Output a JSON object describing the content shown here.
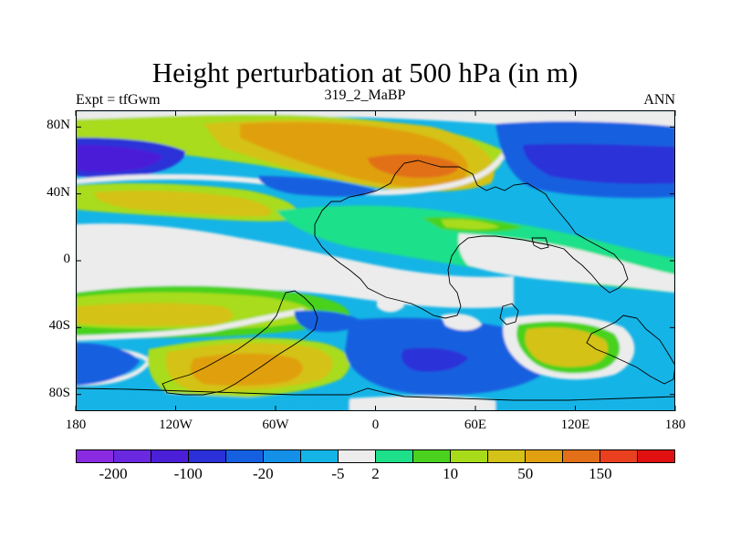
{
  "title": "Height perturbation at 500 hPa (in m)",
  "left_label": "Expt = tfGwm",
  "center_label": "319_2_MaBP",
  "right_label": "ANN",
  "map": {
    "y_ticks": [
      {
        "lat": 80,
        "label": "80N"
      },
      {
        "lat": 40,
        "label": "40N"
      },
      {
        "lat": 0,
        "label": "0"
      },
      {
        "lat": -40,
        "label": "40S"
      },
      {
        "lat": -80,
        "label": "80S"
      }
    ],
    "x_ticks": [
      {
        "lon": -180,
        "label": "180"
      },
      {
        "lon": -120,
        "label": "120W"
      },
      {
        "lon": -60,
        "label": "60W"
      },
      {
        "lon": 0,
        "label": "0"
      },
      {
        "lon": 60,
        "label": "60E"
      },
      {
        "lon": 120,
        "label": "120E"
      },
      {
        "lon": 180,
        "label": "180"
      }
    ]
  },
  "colorbar": {
    "colors": [
      "#8a2be2",
      "#6a28e0",
      "#4b1fd8",
      "#2c30d8",
      "#1560e0",
      "#1590e8",
      "#15b4e6",
      "#ececec",
      "#1ee08a",
      "#4ad21e",
      "#a8dc1a",
      "#d4c218",
      "#e0a010",
      "#e27018",
      "#ea4020",
      "#e01010"
    ],
    "labels": [
      {
        "label": "-200",
        "index": 1
      },
      {
        "label": "-100",
        "index": 3
      },
      {
        "label": "-20",
        "index": 5
      },
      {
        "label": "-5",
        "index": 7
      },
      {
        "label": "2",
        "index": 8
      },
      {
        "label": "10",
        "index": 10
      },
      {
        "label": "50",
        "index": 12
      },
      {
        "label": "150",
        "index": 14
      }
    ]
  }
}
